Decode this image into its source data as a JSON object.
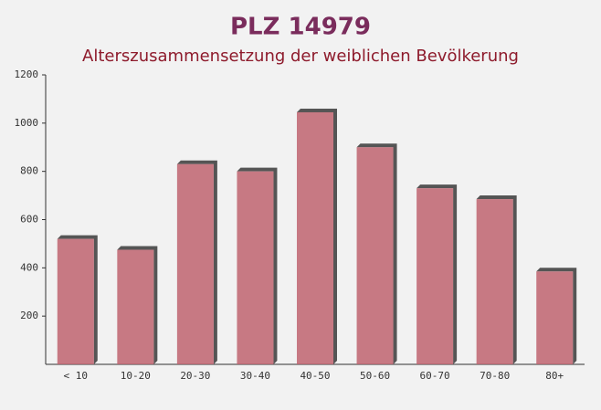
{
  "chart_data": {
    "type": "bar",
    "title": "PLZ 14979",
    "subtitle": "Alterszusammensetzung der weiblichen Bevölkerung",
    "categories": [
      "< 10",
      "10-20",
      "20-30",
      "30-40",
      "40-50",
      "50-60",
      "60-70",
      "70-80",
      "80+"
    ],
    "values": [
      520,
      475,
      830,
      800,
      1045,
      900,
      730,
      685,
      385
    ],
    "color": "#c06470",
    "ylim": [
      0,
      1200
    ],
    "yticks": [
      200,
      400,
      600,
      800,
      1000,
      1200
    ],
    "grid": false
  }
}
